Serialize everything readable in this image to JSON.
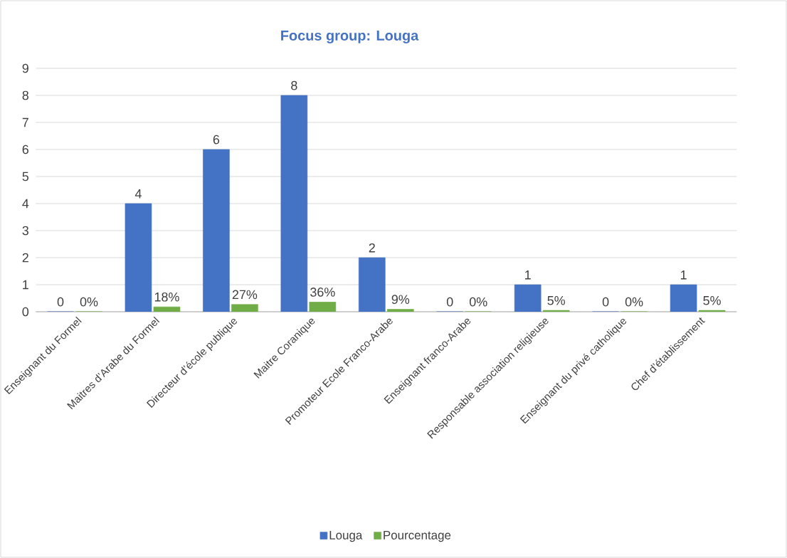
{
  "chart_data": {
    "type": "bar",
    "title": "Focus group: Louga",
    "categories": [
      "Enseignant du Formel",
      "Maitres d’Arabe du Formel",
      "Directeur d’école publique",
      "Maitre Coranique",
      "Promoteur Ecole Franco-Arabe",
      "Enseignant franco-Arabe",
      "Responsable association religieuse",
      "Enseignant du privé catholique",
      "Chef d’établissement"
    ],
    "series": [
      {
        "name": "Louga",
        "color": "#4472c4",
        "values": [
          0,
          4,
          6,
          8,
          2,
          0,
          1,
          0,
          1
        ],
        "value_labels": [
          "0",
          "4",
          "6",
          "8",
          "2",
          "0",
          "1",
          "0",
          "1"
        ]
      },
      {
        "name": "Pourcentage",
        "color": "#70ad47",
        "values": [
          0,
          0.18,
          0.27,
          0.36,
          0.09,
          0,
          0.05,
          0,
          0.05
        ],
        "value_labels": [
          "0%",
          "18%",
          "27%",
          "36%",
          "9%",
          "0%",
          "5%",
          "0%",
          "5%"
        ]
      }
    ],
    "ylim": [
      0,
      9
    ],
    "yticks": [
      0,
      1,
      2,
      3,
      4,
      5,
      6,
      7,
      8,
      9
    ],
    "grid": "y",
    "legend": "bottom"
  }
}
